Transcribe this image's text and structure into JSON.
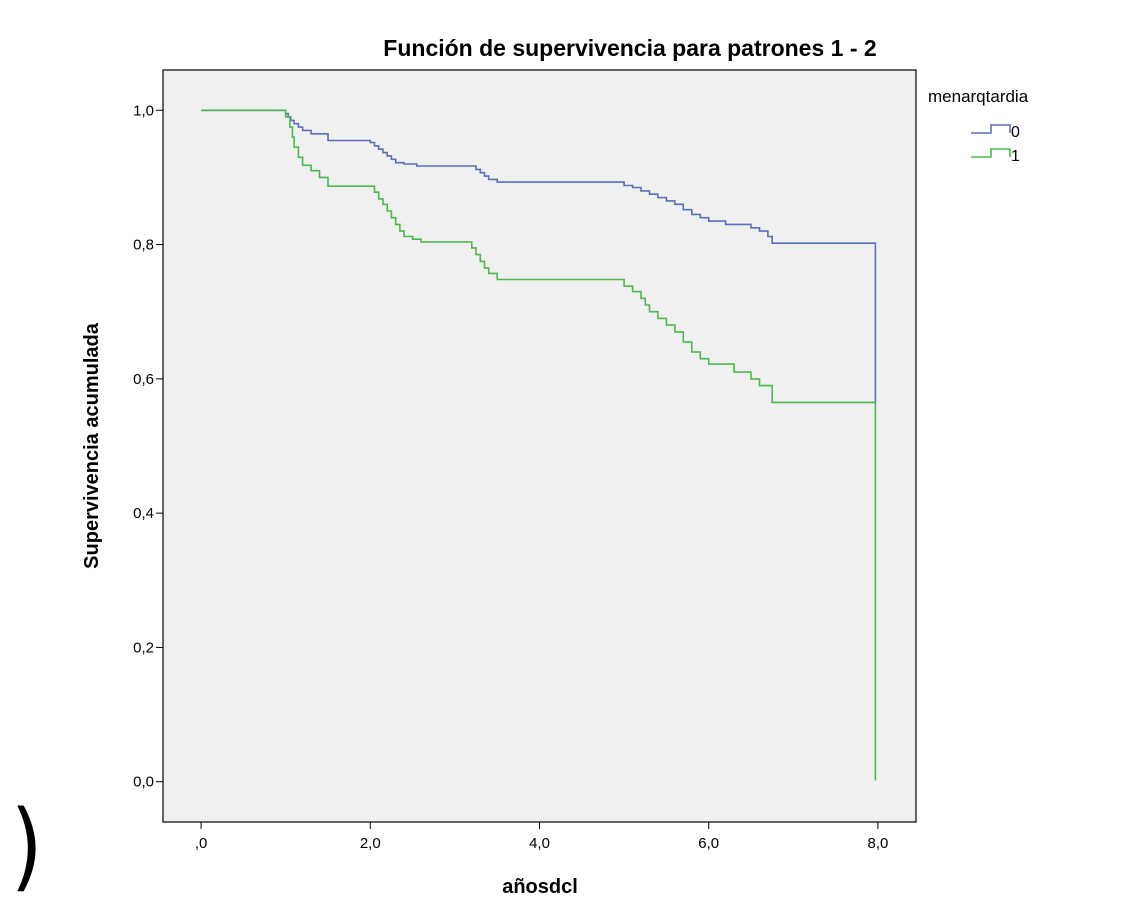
{
  "colors": {
    "plot_bg": "#f0f0f0",
    "series_0": "#5b6fb8",
    "series_1": "#4db84d",
    "axis": "#000000"
  },
  "stray_glyph": ")",
  "chart_data": {
    "type": "line",
    "step": true,
    "title": "Función de supervivencia para patrones 1 - 2",
    "xlabel": "añosdcl",
    "ylabel": "Supervivencia acumulada",
    "xlim": [
      -0.45,
      8.45
    ],
    "ylim": [
      -0.06,
      1.06
    ],
    "x_ticks": [
      0,
      2,
      4,
      6,
      8
    ],
    "x_tick_labels": [
      ",0",
      "2,0",
      "4,0",
      "6,0",
      "8,0"
    ],
    "y_ticks": [
      0,
      0.2,
      0.4,
      0.6,
      0.8,
      1.0
    ],
    "y_tick_labels": [
      "0,0",
      "0,2",
      "0,4",
      "0,6",
      "0,8",
      "1,0"
    ],
    "grid": false,
    "legend_title": "menarqtardia",
    "legend_position": "top-right-outside",
    "series": [
      {
        "name": "0",
        "color": "#5b6fb8",
        "points": [
          [
            0,
            1.0
          ],
          [
            0.95,
            1.0
          ],
          [
            1.0,
            0.995
          ],
          [
            1.03,
            0.99
          ],
          [
            1.06,
            0.985
          ],
          [
            1.1,
            0.98
          ],
          [
            1.15,
            0.975
          ],
          [
            1.2,
            0.97
          ],
          [
            1.3,
            0.965
          ],
          [
            1.5,
            0.955
          ],
          [
            1.95,
            0.955
          ],
          [
            2.0,
            0.952
          ],
          [
            2.05,
            0.947
          ],
          [
            2.1,
            0.942
          ],
          [
            2.15,
            0.937
          ],
          [
            2.2,
            0.932
          ],
          [
            2.25,
            0.927
          ],
          [
            2.3,
            0.922
          ],
          [
            2.4,
            0.92
          ],
          [
            2.55,
            0.917
          ],
          [
            3.2,
            0.917
          ],
          [
            3.25,
            0.912
          ],
          [
            3.3,
            0.907
          ],
          [
            3.35,
            0.902
          ],
          [
            3.4,
            0.897
          ],
          [
            3.5,
            0.893
          ],
          [
            4.95,
            0.893
          ],
          [
            5.0,
            0.888
          ],
          [
            5.1,
            0.885
          ],
          [
            5.2,
            0.88
          ],
          [
            5.3,
            0.875
          ],
          [
            5.4,
            0.87
          ],
          [
            5.5,
            0.865
          ],
          [
            5.6,
            0.86
          ],
          [
            5.7,
            0.852
          ],
          [
            5.8,
            0.845
          ],
          [
            5.9,
            0.84
          ],
          [
            6.0,
            0.835
          ],
          [
            6.2,
            0.83
          ],
          [
            6.5,
            0.825
          ],
          [
            6.6,
            0.82
          ],
          [
            6.7,
            0.812
          ],
          [
            6.75,
            0.802
          ],
          [
            7.97,
            0.802
          ],
          [
            7.97,
            0.565
          ]
        ]
      },
      {
        "name": "1",
        "color": "#4db84d",
        "points": [
          [
            0,
            1.0
          ],
          [
            0.95,
            1.0
          ],
          [
            1.0,
            0.99
          ],
          [
            1.05,
            0.975
          ],
          [
            1.08,
            0.96
          ],
          [
            1.1,
            0.945
          ],
          [
            1.15,
            0.93
          ],
          [
            1.2,
            0.918
          ],
          [
            1.3,
            0.91
          ],
          [
            1.4,
            0.9
          ],
          [
            1.5,
            0.887
          ],
          [
            1.95,
            0.887
          ],
          [
            2.05,
            0.878
          ],
          [
            2.1,
            0.868
          ],
          [
            2.15,
            0.86
          ],
          [
            2.2,
            0.85
          ],
          [
            2.25,
            0.84
          ],
          [
            2.3,
            0.83
          ],
          [
            2.35,
            0.82
          ],
          [
            2.4,
            0.812
          ],
          [
            2.5,
            0.808
          ],
          [
            2.6,
            0.804
          ],
          [
            3.1,
            0.804
          ],
          [
            3.2,
            0.795
          ],
          [
            3.25,
            0.785
          ],
          [
            3.3,
            0.775
          ],
          [
            3.35,
            0.765
          ],
          [
            3.4,
            0.757
          ],
          [
            3.5,
            0.748
          ],
          [
            4.95,
            0.748
          ],
          [
            5.0,
            0.738
          ],
          [
            5.1,
            0.73
          ],
          [
            5.2,
            0.72
          ],
          [
            5.25,
            0.71
          ],
          [
            5.3,
            0.7
          ],
          [
            5.4,
            0.69
          ],
          [
            5.5,
            0.68
          ],
          [
            5.6,
            0.67
          ],
          [
            5.7,
            0.655
          ],
          [
            5.8,
            0.64
          ],
          [
            5.9,
            0.63
          ],
          [
            6.0,
            0.622
          ],
          [
            6.3,
            0.61
          ],
          [
            6.5,
            0.6
          ],
          [
            6.6,
            0.59
          ],
          [
            6.75,
            0.565
          ],
          [
            7.97,
            0.565
          ],
          [
            7.97,
            0.002
          ]
        ]
      }
    ]
  }
}
